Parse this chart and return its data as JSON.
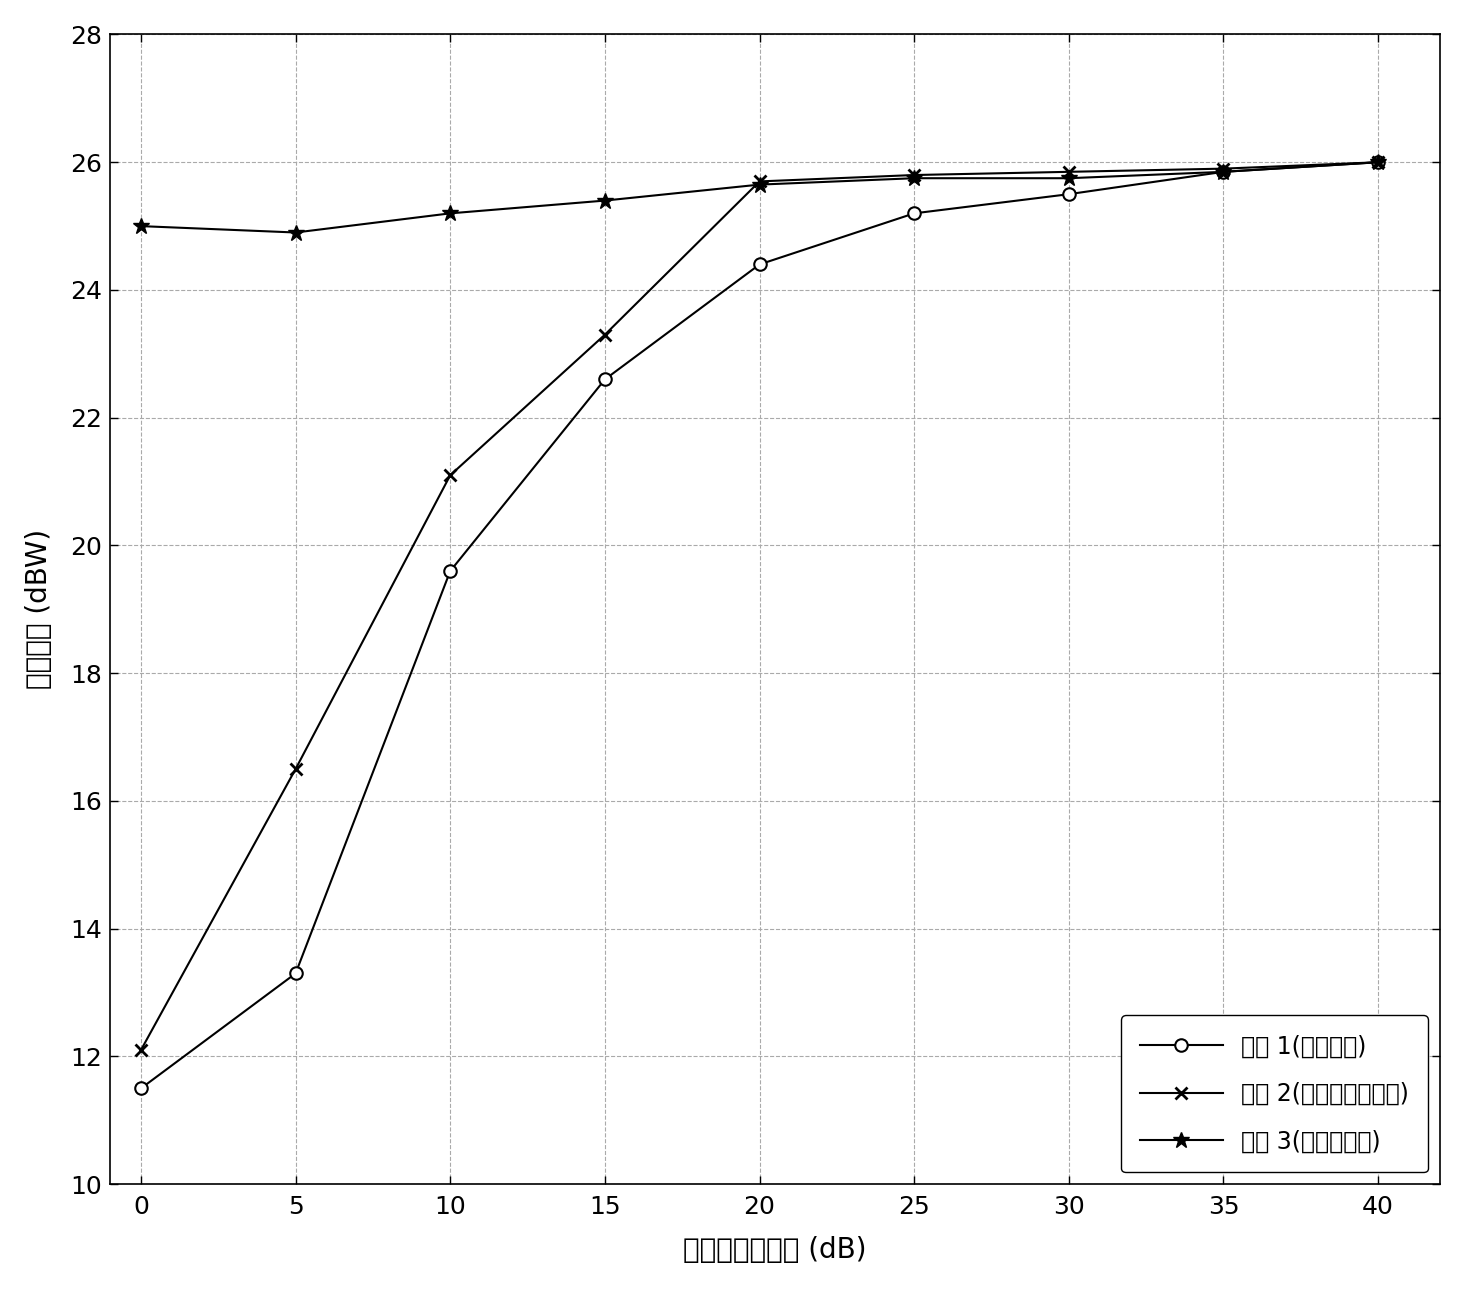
{
  "x": [
    0,
    5,
    10,
    15,
    20,
    25,
    30,
    35,
    40
  ],
  "algo1_y": [
    11.5,
    13.3,
    19.6,
    22.6,
    24.4,
    25.2,
    25.5,
    25.85,
    26.0
  ],
  "algo2_y": [
    12.1,
    16.5,
    21.1,
    23.3,
    25.7,
    25.8,
    25.85,
    25.9,
    26.0
  ],
  "algo3_y": [
    25.0,
    24.9,
    25.2,
    25.4,
    25.65,
    25.75,
    25.75,
    25.85,
    26.0
  ],
  "xlabel": "信于噪比目标值 (dB)",
  "ylabel": "传输功率 (dBW)",
  "legend1": "算法 1(最优算法)",
  "legend2": "算法 2(迫零预编码算法)",
  "legend3": "算法 3(本发明方法)",
  "xlim": [
    -1,
    42
  ],
  "ylim": [
    10,
    28
  ],
  "xticks": [
    0,
    5,
    10,
    15,
    20,
    25,
    30,
    35,
    40
  ],
  "yticks": [
    10,
    12,
    14,
    16,
    18,
    20,
    22,
    24,
    26,
    28
  ],
  "color_black": "#000000",
  "grid_major_color": "#aaaaaa",
  "grid_minor_color": "#cccccc",
  "line_width": 1.5,
  "marker_size": 9,
  "font_size_label": 20,
  "font_size_tick": 18,
  "font_size_legend": 17
}
